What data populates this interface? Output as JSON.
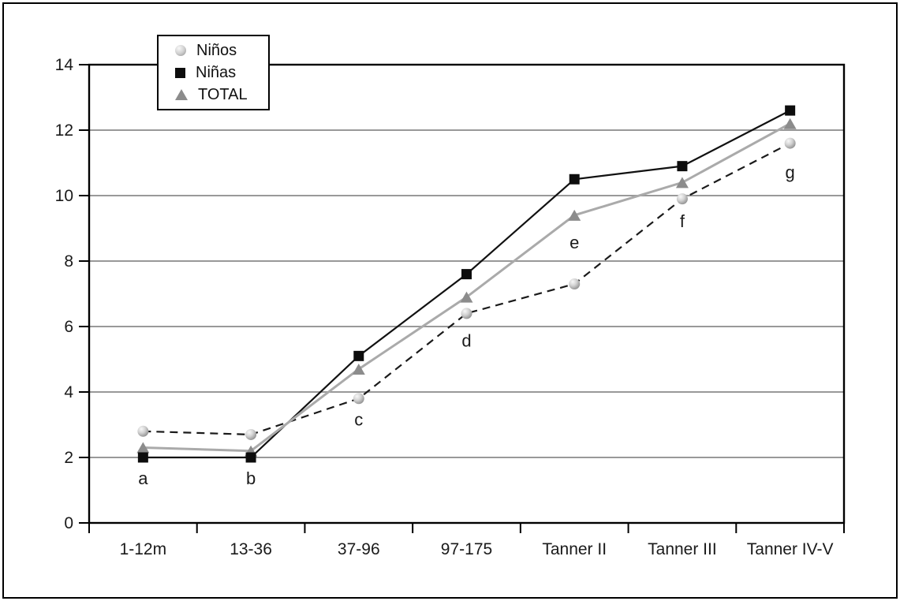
{
  "figure": {
    "background_color": "#ffffff",
    "border_color": "#000000"
  },
  "chart_data": {
    "type": "line",
    "title": "",
    "xlabel": "",
    "ylabel": "",
    "categories": [
      "1-12m",
      "13-36",
      "37-96",
      "97-175",
      "Tanner II",
      "Tanner III",
      "Tanner IV-V"
    ],
    "series": [
      {
        "name": "Niños",
        "marker": "sphere",
        "line_style": "dashed",
        "line_color": "#1a1a1a",
        "marker_color": "#c9c9c9",
        "values": [
          2.8,
          2.7,
          3.8,
          6.4,
          7.3,
          9.9,
          11.6
        ]
      },
      {
        "name": "Niñas",
        "marker": "square",
        "line_style": "solid",
        "line_color": "#111111",
        "marker_color": "#0d0d0d",
        "values": [
          2.0,
          2.0,
          5.1,
          7.6,
          10.5,
          10.9,
          12.6
        ]
      },
      {
        "name": "TOTAL",
        "marker": "triangle",
        "line_style": "solid",
        "line_color": "#aaaaaa",
        "marker_color": "#8c8c8c",
        "values": [
          2.3,
          2.2,
          4.7,
          6.9,
          9.4,
          10.4,
          12.2
        ]
      }
    ],
    "annotations": [
      {
        "label": "a",
        "category_index": 0,
        "y": 1.35
      },
      {
        "label": "b",
        "category_index": 1,
        "y": 1.35
      },
      {
        "label": "c",
        "category_index": 2,
        "y": 3.15
      },
      {
        "label": "d",
        "category_index": 3,
        "y": 5.55
      },
      {
        "label": "e",
        "category_index": 4,
        "y": 8.55
      },
      {
        "label": "f",
        "category_index": 5,
        "y": 9.2
      },
      {
        "label": "g",
        "category_index": 6,
        "y": 10.7
      }
    ],
    "ylim": [
      0,
      14
    ],
    "y_ticks": [
      0,
      2,
      4,
      6,
      8,
      10,
      12,
      14
    ],
    "grid": "horizontal",
    "gridline_color": "#999999",
    "axis_color": "#000000",
    "legend_position": "top-left-inside",
    "legend": [
      {
        "label": "Niños",
        "marker": "sphere"
      },
      {
        "label": "Niñas",
        "marker": "square"
      },
      {
        "label": "TOTAL",
        "marker": "triangle"
      }
    ]
  }
}
